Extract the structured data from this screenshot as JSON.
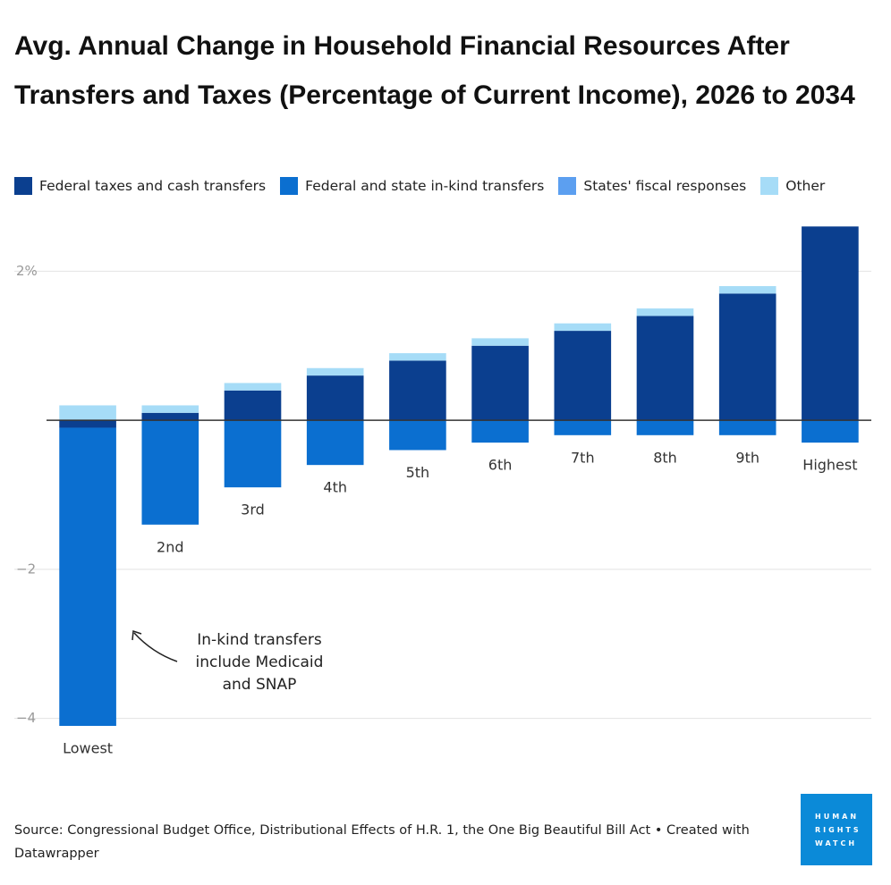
{
  "chart_data": {
    "type": "bar",
    "stacked": true,
    "title": "Avg. Annual Change in Household Financial Resources After Transfers and Taxes (Percentage of Current Income), 2026 to 2034",
    "categories": [
      "Lowest",
      "2nd",
      "3rd",
      "4th",
      "5th",
      "6th",
      "7th",
      "8th",
      "9th",
      "Highest"
    ],
    "series": [
      {
        "name": "Federal taxes and cash transfers",
        "color": "#0b3f8f",
        "values": [
          -0.1,
          0.1,
          0.4,
          0.6,
          0.8,
          1.0,
          1.2,
          1.4,
          1.7,
          2.6
        ]
      },
      {
        "name": "Federal and state in-kind transfers",
        "color": "#0b6fd0",
        "values": [
          -4.0,
          -1.4,
          -0.9,
          -0.6,
          -0.4,
          -0.3,
          -0.2,
          -0.2,
          -0.2,
          -0.3
        ]
      },
      {
        "name": "States' fiscal responses",
        "color": "#5c9ff0",
        "values": [
          0,
          0,
          0,
          0,
          0,
          0,
          0,
          0,
          0,
          0
        ]
      },
      {
        "name": "Other",
        "color": "#a6dcf7",
        "values": [
          0.2,
          0.1,
          0.1,
          0.1,
          0.1,
          0.1,
          0.1,
          0.1,
          0.1,
          0
        ]
      }
    ],
    "ylim": [
      -4.1,
      2.7
    ],
    "yticks": [
      {
        "value": -4,
        "label": "−4"
      },
      {
        "value": -2,
        "label": "−2"
      },
      {
        "value": 2,
        "label": "2%"
      }
    ],
    "grid": true,
    "legend": "top",
    "annotation": [
      "In-kind transfers",
      "include Medicaid",
      "and SNAP"
    ],
    "source": "Source: Congressional Budget Office, Distributional Effects of H.R. 1, the One Big Beautiful Bill Act • Created with Datawrapper",
    "logo": [
      "HUMAN",
      "RIGHTS",
      "WATCH"
    ]
  }
}
